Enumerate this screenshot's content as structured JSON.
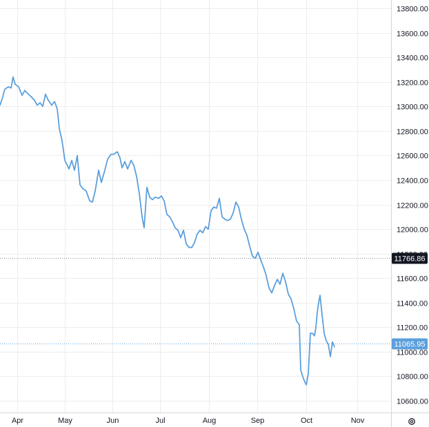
{
  "chart_data": {
    "type": "line",
    "title": "",
    "xlabel": "",
    "ylabel": "",
    "grid": true,
    "ylim": [
      10500,
      13900
    ],
    "y_ticks": [
      10600,
      10800,
      11000,
      11200,
      11400,
      11600,
      11800,
      12000,
      12200,
      12400,
      12600,
      12800,
      13000,
      13200,
      13400,
      13600,
      13800
    ],
    "y_tick_labels": [
      "10600.00",
      "10800.00",
      "11000.00",
      "11200.00",
      "11400.00",
      "11600.00",
      "11800.00",
      "12000.00",
      "12200.00",
      "12400.00",
      "12600.00",
      "12800.00",
      "13000.00",
      "13200.00",
      "13400.00",
      "13600.00",
      "13800.00"
    ],
    "x_month_labels": [
      "Apr",
      "May",
      "Jun",
      "Jul",
      "Aug",
      "Sep",
      "Oct",
      "Nov"
    ],
    "x_month_day_index": [
      25,
      94,
      163,
      232,
      303,
      373,
      444,
      518
    ],
    "x_range_days": [
      0,
      560
    ],
    "line_color": "#5b9fdc",
    "dashed_levels": [
      {
        "label": "11766.86",
        "value": 11766.86,
        "bg": "#131722",
        "fg": "#ffffff",
        "dash_color": "#8a8f99"
      },
      {
        "label": "11065.95",
        "value": 11065.95,
        "bg": "#5b9fdc",
        "fg": "#ffffff",
        "dash_color": "#5b9fdc"
      }
    ],
    "series": [
      {
        "values": [
          [
            0,
            13010
          ],
          [
            3,
            13060
          ],
          [
            7,
            13140
          ],
          [
            12,
            13160
          ],
          [
            16,
            13150
          ],
          [
            19,
            13240
          ],
          [
            22,
            13180
          ],
          [
            27,
            13160
          ],
          [
            32,
            13090
          ],
          [
            36,
            13130
          ],
          [
            41,
            13100
          ],
          [
            45,
            13080
          ],
          [
            50,
            13050
          ],
          [
            54,
            13010
          ],
          [
            58,
            13030
          ],
          [
            62,
            13000
          ],
          [
            66,
            13100
          ],
          [
            70,
            13050
          ],
          [
            75,
            13010
          ],
          [
            79,
            13040
          ],
          [
            83,
            12980
          ],
          [
            86,
            12820
          ],
          [
            90,
            12720
          ],
          [
            94,
            12560
          ],
          [
            100,
            12490
          ],
          [
            104,
            12560
          ],
          [
            108,
            12480
          ],
          [
            112,
            12600
          ],
          [
            116,
            12360
          ],
          [
            120,
            12330
          ],
          [
            125,
            12310
          ],
          [
            130,
            12230
          ],
          [
            134,
            12220
          ],
          [
            138,
            12310
          ],
          [
            143,
            12480
          ],
          [
            147,
            12380
          ],
          [
            152,
            12480
          ],
          [
            156,
            12570
          ],
          [
            161,
            12610
          ],
          [
            165,
            12610
          ],
          [
            170,
            12630
          ],
          [
            174,
            12580
          ],
          [
            177,
            12500
          ],
          [
            181,
            12550
          ],
          [
            185,
            12490
          ],
          [
            190,
            12560
          ],
          [
            194,
            12520
          ],
          [
            198,
            12430
          ],
          [
            202,
            12290
          ],
          [
            206,
            12100
          ],
          [
            209,
            12010
          ],
          [
            213,
            12340
          ],
          [
            217,
            12260
          ],
          [
            221,
            12240
          ],
          [
            225,
            12260
          ],
          [
            230,
            12250
          ],
          [
            234,
            12270
          ],
          [
            238,
            12230
          ],
          [
            242,
            12120
          ],
          [
            246,
            12100
          ],
          [
            250,
            12060
          ],
          [
            254,
            12010
          ],
          [
            258,
            11990
          ],
          [
            262,
            11930
          ],
          [
            266,
            11990
          ],
          [
            270,
            11880
          ],
          [
            274,
            11850
          ],
          [
            278,
            11850
          ],
          [
            282,
            11890
          ],
          [
            286,
            11960
          ],
          [
            290,
            11990
          ],
          [
            294,
            11970
          ],
          [
            298,
            12020
          ],
          [
            302,
            12000
          ],
          [
            306,
            12150
          ],
          [
            310,
            12180
          ],
          [
            314,
            12170
          ],
          [
            318,
            12250
          ],
          [
            322,
            12100
          ],
          [
            326,
            12080
          ],
          [
            330,
            12070
          ],
          [
            334,
            12080
          ],
          [
            338,
            12130
          ],
          [
            342,
            12220
          ],
          [
            346,
            12180
          ],
          [
            350,
            12080
          ],
          [
            354,
            12000
          ],
          [
            358,
            11950
          ],
          [
            362,
            11860
          ],
          [
            366,
            11780
          ],
          [
            370,
            11760
          ],
          [
            374,
            11810
          ],
          [
            378,
            11750
          ],
          [
            382,
            11690
          ],
          [
            386,
            11620
          ],
          [
            390,
            11520
          ],
          [
            394,
            11480
          ],
          [
            398,
            11540
          ],
          [
            402,
            11590
          ],
          [
            406,
            11550
          ],
          [
            410,
            11640
          ],
          [
            414,
            11570
          ],
          [
            418,
            11470
          ],
          [
            422,
            11430
          ],
          [
            426,
            11350
          ],
          [
            430,
            11250
          ],
          [
            434,
            11220
          ],
          [
            436,
            10850
          ],
          [
            440,
            10780
          ],
          [
            444,
            10730
          ],
          [
            447,
            10820
          ],
          [
            450,
            11150
          ],
          [
            453,
            11150
          ],
          [
            456,
            11130
          ],
          [
            458,
            11200
          ],
          [
            460,
            11320
          ],
          [
            462,
            11400
          ],
          [
            464,
            11460
          ],
          [
            467,
            11300
          ],
          [
            470,
            11150
          ],
          [
            473,
            11090
          ],
          [
            476,
            11060
          ],
          [
            479,
            10960
          ],
          [
            482,
            11080
          ],
          [
            485,
            11040
          ]
        ]
      }
    ]
  },
  "settings_icon": "gear-icon"
}
